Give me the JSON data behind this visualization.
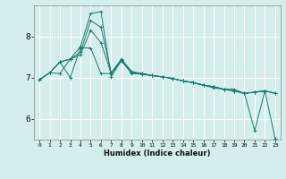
{
  "xlabel": "Humidex (Indice chaleur)",
  "bg_color": "#d4eeed",
  "line_color": "#1a7a6e",
  "grid_color": "#ffffff",
  "grid_minor_color": "#e0f4f4",
  "xlim": [
    -0.5,
    23.5
  ],
  "ylim": [
    5.5,
    8.75
  ],
  "xticks": [
    0,
    1,
    2,
    3,
    4,
    5,
    6,
    7,
    8,
    9,
    10,
    11,
    12,
    13,
    14,
    15,
    16,
    17,
    18,
    19,
    20,
    21,
    22,
    23
  ],
  "yticks": [
    6,
    7,
    8
  ],
  "lines": [
    {
      "x": [
        0,
        1,
        2,
        3,
        4,
        5,
        6,
        7,
        8,
        9,
        10,
        11,
        12,
        13,
        14,
        15,
        16,
        17,
        18,
        19,
        20,
        21,
        22,
        23
      ],
      "y": [
        6.95,
        7.12,
        7.38,
        7.45,
        7.75,
        8.55,
        8.6,
        7.02,
        7.42,
        7.1,
        7.08,
        7.05,
        7.02,
        6.98,
        6.92,
        6.88,
        6.82,
        6.75,
        6.72,
        6.72,
        6.62,
        5.72,
        6.68,
        5.52
      ]
    },
    {
      "x": [
        0,
        1,
        2,
        3,
        4,
        5,
        6,
        7,
        8,
        9,
        10,
        11,
        12,
        13,
        14,
        15,
        16,
        17,
        18,
        19,
        20,
        21,
        22,
        23
      ],
      "y": [
        6.95,
        7.12,
        7.1,
        7.45,
        7.55,
        8.15,
        7.85,
        7.1,
        7.4,
        7.12,
        7.1,
        7.05,
        7.02,
        6.98,
        6.92,
        6.88,
        6.82,
        6.78,
        6.72,
        6.68,
        6.62,
        6.65,
        6.68,
        6.62
      ]
    },
    {
      "x": [
        0,
        1,
        2,
        3,
        4,
        5,
        6,
        7,
        8,
        9,
        10,
        11,
        12,
        13,
        14,
        15,
        16,
        17,
        18,
        19,
        20,
        21,
        22,
        23
      ],
      "y": [
        6.95,
        7.12,
        7.38,
        7.45,
        7.62,
        8.38,
        8.22,
        7.12,
        7.45,
        7.15,
        7.1,
        7.05,
        7.02,
        6.98,
        6.92,
        6.88,
        6.82,
        6.78,
        6.72,
        6.68,
        6.62,
        6.65,
        6.68,
        6.62
      ]
    },
    {
      "x": [
        0,
        1,
        2,
        3,
        4,
        5,
        6,
        7,
        8,
        9,
        10,
        11,
        12,
        13,
        14,
        15,
        16,
        17,
        18,
        19,
        20,
        21,
        22,
        23
      ],
      "y": [
        6.95,
        7.12,
        7.38,
        7.0,
        7.72,
        7.72,
        7.1,
        7.1,
        7.42,
        7.12,
        7.1,
        7.05,
        7.02,
        6.98,
        6.92,
        6.88,
        6.82,
        6.78,
        6.72,
        6.68,
        6.62,
        6.65,
        6.68,
        6.62
      ]
    }
  ]
}
